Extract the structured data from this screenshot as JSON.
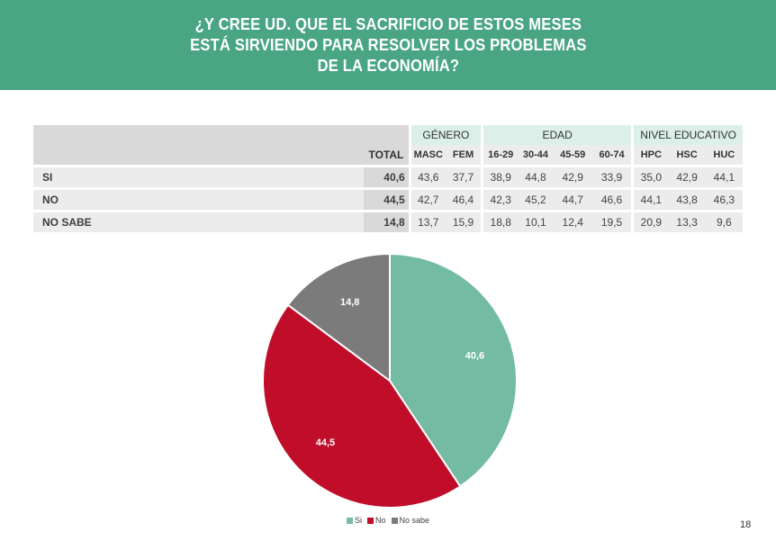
{
  "title": "¿Y CREE UD. QUE EL SACRIFICIO DE ESTOS MESES\nESTÁ SIRVIENDO PARA RESOLVER LOS PROBLEMAS\nDE LA ECONOMÍA?",
  "table": {
    "groups": [
      "GÉNERO",
      "EDAD",
      "NIVEL EDUCATIVO"
    ],
    "total_header": "TOTAL",
    "sub_headers": [
      "MASC",
      "FEM",
      "16-29",
      "30-44",
      "45-59",
      "60-74",
      "HPC",
      "HSC",
      "HUC"
    ],
    "rows": [
      {
        "label": "SI",
        "total": "40,6",
        "values": [
          "43,6",
          "37,7",
          "38,9",
          "44,8",
          "42,9",
          "33,9",
          "35,0",
          "42,9",
          "44,1"
        ]
      },
      {
        "label": "NO",
        "total": "44,5",
        "values": [
          "42,7",
          "46,4",
          "42,3",
          "45,2",
          "44,7",
          "46,6",
          "44,1",
          "43,8",
          "46,3"
        ]
      },
      {
        "label": "NO SABE",
        "total": "14,8",
        "values": [
          "13,7",
          "15,9",
          "18,8",
          "10,1",
          "12,4",
          "19,5",
          "20,9",
          "13,3",
          "9,6"
        ]
      }
    ]
  },
  "chart_data": {
    "type": "pie",
    "slices": [
      {
        "name": "Si",
        "value": 40.6,
        "label": "40,6",
        "color": "#73bba3"
      },
      {
        "name": "No",
        "value": 44.5,
        "label": "44,5",
        "color": "#c00d29"
      },
      {
        "name": "No sabe",
        "value": 14.8,
        "label": "14,8",
        "color": "#7b7b7b"
      }
    ],
    "legend_position": "bottom"
  },
  "page_number": "18"
}
